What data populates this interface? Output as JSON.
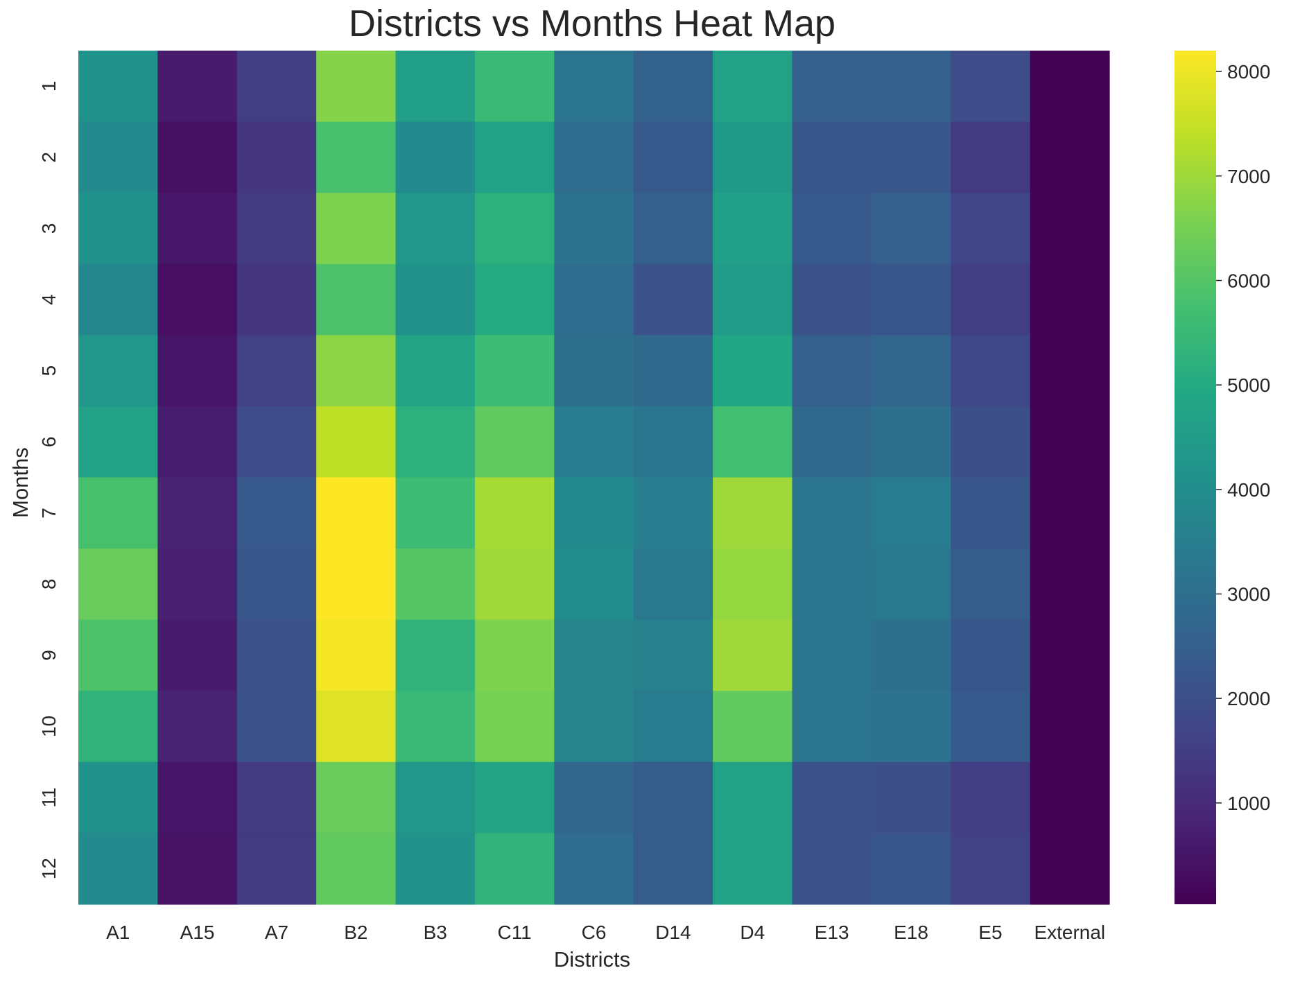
{
  "chart_data": {
    "type": "heatmap",
    "title": "Districts vs Months Heat Map",
    "xlabel": "Districts",
    "ylabel": "Months",
    "x_categories": [
      "A1",
      "A15",
      "A7",
      "B2",
      "B3",
      "C11",
      "C6",
      "D14",
      "D4",
      "E13",
      "E18",
      "E5",
      "External"
    ],
    "y_categories": [
      "1",
      "2",
      "3",
      "4",
      "5",
      "6",
      "7",
      "8",
      "9",
      "10",
      "11",
      "12"
    ],
    "values": [
      [
        4100,
        650,
        1500,
        6700,
        4600,
        5500,
        3200,
        2600,
        4700,
        2500,
        2500,
        1900,
        50
      ],
      [
        3900,
        400,
        1300,
        5800,
        3900,
        4700,
        2900,
        2300,
        4400,
        2200,
        2200,
        1400,
        50
      ],
      [
        4100,
        550,
        1400,
        6600,
        4300,
        5200,
        3100,
        2500,
        4600,
        2300,
        2500,
        1700,
        50
      ],
      [
        3800,
        350,
        1300,
        5900,
        4100,
        5000,
        2900,
        2100,
        4500,
        2100,
        2200,
        1500,
        50
      ],
      [
        4300,
        500,
        1600,
        6800,
        4800,
        5600,
        3000,
        2800,
        4900,
        2500,
        2700,
        1800,
        50
      ],
      [
        4700,
        700,
        1900,
        7400,
        5200,
        6200,
        3500,
        3200,
        5700,
        2800,
        3000,
        2000,
        50
      ],
      [
        5800,
        800,
        2300,
        8200,
        5600,
        7100,
        3900,
        3500,
        7000,
        3200,
        3400,
        2200,
        50
      ],
      [
        6300,
        750,
        2200,
        8200,
        6000,
        7000,
        4000,
        3300,
        6900,
        3200,
        3300,
        2400,
        50
      ],
      [
        5900,
        650,
        2100,
        8100,
        5300,
        6600,
        3700,
        3600,
        7000,
        3200,
        3000,
        2200,
        50
      ],
      [
        5300,
        800,
        2100,
        7800,
        5500,
        6500,
        3700,
        3400,
        6200,
        3200,
        3100,
        2300,
        50
      ],
      [
        4100,
        500,
        1400,
        6300,
        4300,
        4800,
        2700,
        2400,
        4700,
        2100,
        2000,
        1500,
        50
      ],
      [
        3900,
        450,
        1400,
        6200,
        4200,
        5300,
        2900,
        2400,
        4700,
        2100,
        2200,
        1600,
        50
      ]
    ],
    "colormap": "viridis",
    "colorbar": {
      "vmin": 30,
      "vmax": 8200,
      "ticks": [
        1000,
        2000,
        3000,
        4000,
        5000,
        6000,
        7000,
        8000
      ]
    },
    "grid": false
  }
}
